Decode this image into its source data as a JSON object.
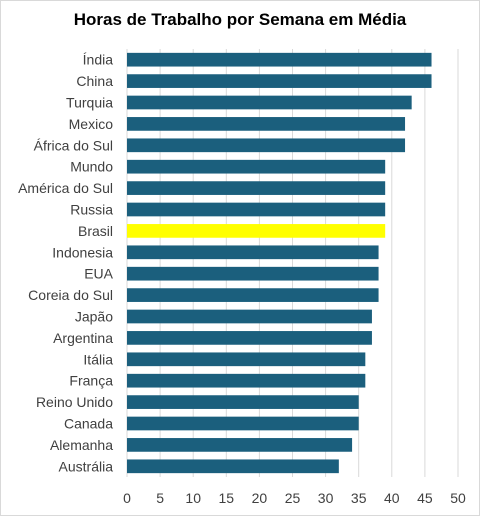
{
  "chart_data": {
    "type": "bar",
    "orientation": "horizontal",
    "title": "Horas de Trabalho por Semana em Média",
    "xlabel": "",
    "ylabel": "",
    "categories": [
      "Índia",
      "China",
      "Turquia",
      "Mexico",
      "África do Sul",
      "Mundo",
      "América do Sul",
      "Russia",
      "Brasil",
      "Indonesia",
      "EUA",
      "Coreia do Sul",
      "Japão",
      "Argentina",
      "Itália",
      "França",
      "Reino Unido",
      "Canada",
      "Alemanha",
      "Austrália"
    ],
    "values": [
      46,
      46,
      43,
      42,
      42,
      39,
      39,
      39,
      39,
      38,
      38,
      38,
      37,
      37,
      36,
      36,
      35,
      35,
      34,
      32
    ],
    "xlim": [
      0,
      50
    ],
    "xticks": [
      0,
      5,
      10,
      15,
      20,
      25,
      30,
      35,
      40,
      45,
      50
    ],
    "grid": true,
    "legend": "none",
    "bar_color": "#1b5f7d",
    "highlight_category": "Brasil",
    "highlight_color": "#ffff00",
    "grid_color": "#d9d9d9"
  }
}
